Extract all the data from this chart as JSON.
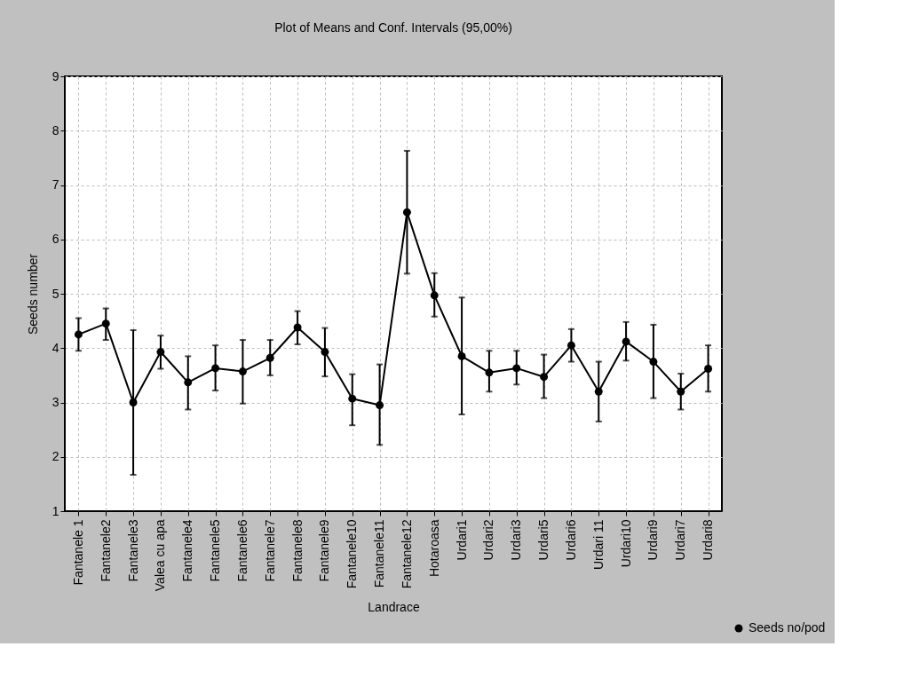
{
  "chart_data": {
    "type": "line",
    "title": "Plot of Means and Conf. Intervals (95,00%)",
    "xlabel": "Landrace",
    "ylabel": "Seeds number",
    "categories": [
      "Fantanele 1",
      "Fantanele2",
      "Fantanele3",
      "Valea cu apa",
      "Fantanele4",
      "Fantanele5",
      "Fantanele6",
      "Fantanele7",
      "Fantanele8",
      "Fantanele9",
      "Fantanele10",
      "Fantanele11",
      "Fantanele12",
      "Hotaroasa",
      "Urdari1",
      "Urdari2",
      "Urdari3",
      "Urdari5",
      "Urdari6",
      "Urdari 11",
      "Urdari10",
      "Urdari9",
      "Urdari7",
      "Urdari8"
    ],
    "series": [
      {
        "name": "Seeds no/pod",
        "color": "#000000",
        "values": [
          4.25,
          4.45,
          3.0,
          3.93,
          3.37,
          3.63,
          3.57,
          3.82,
          4.38,
          3.93,
          3.07,
          2.95,
          6.5,
          4.97,
          3.85,
          3.55,
          3.63,
          3.47,
          4.05,
          3.2,
          4.12,
          3.75,
          3.2,
          3.62
        ],
        "errors": [
          [
            3.95,
            4.55
          ],
          [
            4.15,
            4.73
          ],
          [
            1.67,
            4.33
          ],
          [
            3.62,
            4.23
          ],
          [
            2.87,
            3.85
          ],
          [
            3.22,
            4.05
          ],
          [
            2.98,
            4.15
          ],
          [
            3.5,
            4.15
          ],
          [
            4.07,
            4.68
          ],
          [
            3.48,
            4.37
          ],
          [
            2.58,
            3.52
          ],
          [
            2.22,
            3.7
          ],
          [
            5.37,
            7.63
          ],
          [
            4.58,
            5.38
          ],
          [
            2.78,
            4.93
          ],
          [
            3.2,
            3.95
          ],
          [
            3.33,
            3.95
          ],
          [
            3.08,
            3.88
          ],
          [
            3.75,
            4.35
          ],
          [
            2.65,
            3.75
          ],
          [
            3.77,
            4.48
          ],
          [
            3.08,
            4.43
          ],
          [
            2.87,
            3.53
          ],
          [
            3.2,
            4.05
          ]
        ]
      }
    ],
    "ylim": [
      1,
      9
    ],
    "yticks": [
      1,
      2,
      3,
      4,
      5,
      6,
      7,
      8,
      9
    ],
    "grid": true,
    "legend": "bottom right",
    "marker": "circle",
    "line_style": "solid"
  }
}
